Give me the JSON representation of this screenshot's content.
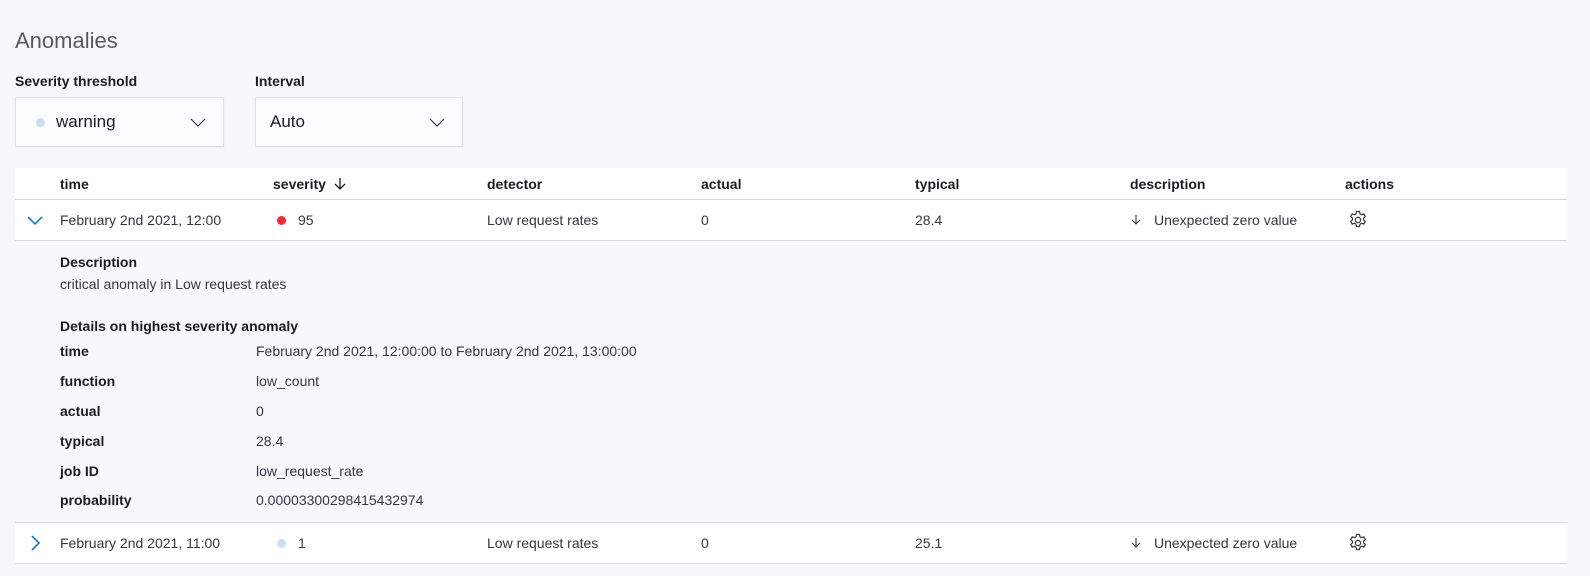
{
  "title": "Anomalies",
  "severity_threshold": {
    "label": "Severity threshold",
    "value": "warning",
    "dot_color": "#c8dff3"
  },
  "interval": {
    "label": "Interval",
    "value": "Auto"
  },
  "table": {
    "columns": [
      "time",
      "severity",
      "detector",
      "actual",
      "typical",
      "description",
      "actions"
    ],
    "sort_icon": "arrow-down-icon",
    "rows": [
      {
        "time": "February 2nd 2021, 12:00",
        "severity": "95",
        "severity_color": "#ee2d3a",
        "detector": "Low request rates",
        "actual": "0",
        "typical": "28.4",
        "description": "Unexpected zero value",
        "expanded": true
      },
      {
        "time": "February 2nd 2021, 11:00",
        "severity": "1",
        "severity_color": "#c8dff3",
        "detector": "Low request rates",
        "actual": "0",
        "typical": "25.1",
        "description": "Unexpected zero value",
        "expanded": false
      }
    ],
    "details": {
      "description_title": "Description",
      "description": "critical anomaly in Low request rates",
      "details_title": "Details on highest severity anomaly",
      "fields": [
        {
          "key": "time",
          "value": "February 2nd 2021, 12:00:00 to February 2nd 2021, 13:00:00"
        },
        {
          "key": "function",
          "value": "low_count"
        },
        {
          "key": "actual",
          "value": "0"
        },
        {
          "key": "typical",
          "value": "28.4"
        },
        {
          "key": "job ID",
          "value": "low_request_rate"
        },
        {
          "key": "probability",
          "value": "0.00003300298415432974"
        }
      ]
    }
  }
}
